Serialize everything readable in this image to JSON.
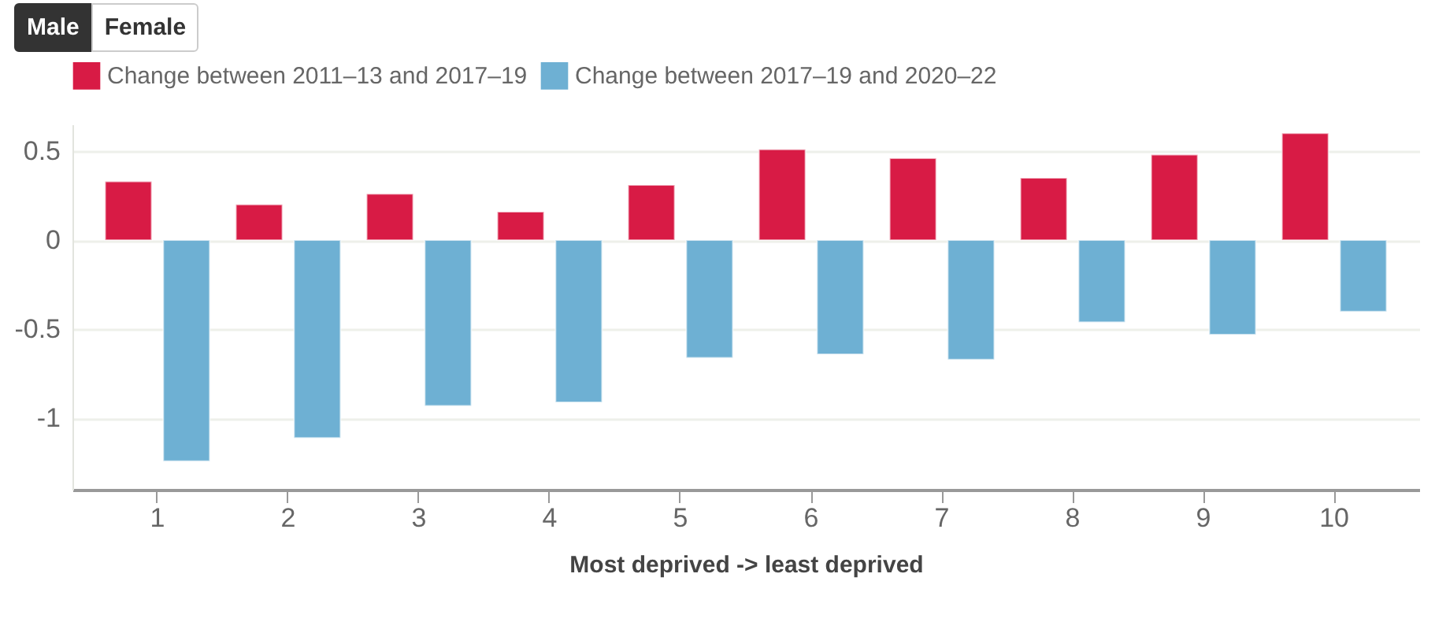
{
  "chart_data": {
    "type": "bar",
    "xlabel": "Most deprived -> least deprived",
    "annotations": [
      "Male",
      "Female"
    ],
    "categories": [
      "1",
      "2",
      "3",
      "4",
      "5",
      "6",
      "7",
      "8",
      "9",
      "10"
    ],
    "series": [
      {
        "name": "Change between 2011–13 and 2017–19",
        "color": "#d81b45",
        "values": [
          0.33,
          0.2,
          0.26,
          0.16,
          0.31,
          0.51,
          0.46,
          0.35,
          0.48,
          0.6
        ]
      },
      {
        "name": "Change between 2017–19 and 2020–22",
        "color": "#6eb0d3",
        "values": [
          -1.24,
          -1.11,
          -0.93,
          -0.91,
          -0.66,
          -0.64,
          -0.67,
          -0.46,
          -0.53,
          -0.4
        ]
      }
    ],
    "ylim": [
      -1.4,
      0.65
    ],
    "yticks": [
      -1,
      -0.5,
      0,
      0.5
    ],
    "grid": "y",
    "legend": "top left"
  }
}
